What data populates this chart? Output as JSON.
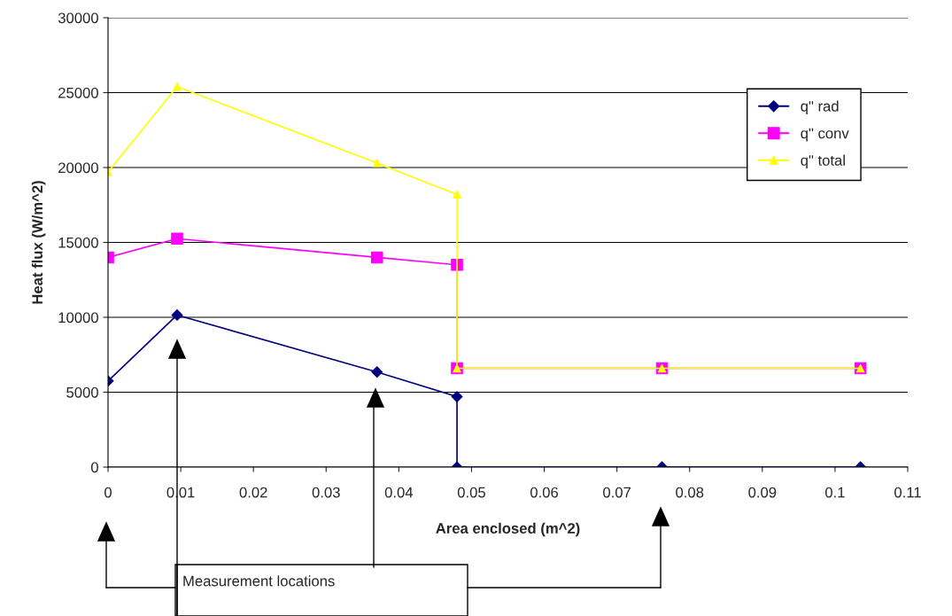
{
  "chart_data": {
    "type": "line",
    "xlabel": "Area enclosed (m^2)",
    "ylabel": "Heat flux (W/m^2)",
    "xlim": [
      0,
      0.11
    ],
    "xticks": [
      0,
      0.01,
      0.02,
      0.03,
      0.04,
      0.05,
      0.06,
      0.07,
      0.08,
      0.09,
      0.1,
      0.11
    ],
    "ylim": [
      0,
      30000
    ],
    "yticks": [
      0,
      5000,
      10000,
      15000,
      20000,
      25000,
      30000
    ],
    "grid": "y",
    "legend": "right",
    "line_style": "solid",
    "series": [
      {
        "name": "q\" rad",
        "color": "#000080",
        "marker": "diamond",
        "x": [
          0,
          0.0095,
          0.037,
          0.048,
          0.048,
          0.0762,
          0.1035
        ],
        "values": [
          5750,
          10150,
          6350,
          4700,
          0,
          0,
          0
        ]
      },
      {
        "name": "q\" conv",
        "color": "#ff00ff",
        "marker": "square",
        "x": [
          0,
          0.0095,
          0.037,
          0.048,
          0.048,
          0.0762,
          0.1035
        ],
        "values": [
          14000,
          15250,
          14000,
          13500,
          6600,
          6600,
          6600
        ]
      },
      {
        "name": "q\" total",
        "color": "#ffff00",
        "marker": "triangle",
        "x": [
          0,
          0.0095,
          0.037,
          0.048,
          0.048,
          0.0762,
          0.1035
        ],
        "values": [
          19700,
          25400,
          20300,
          18200,
          6600,
          6600,
          6600
        ]
      }
    ],
    "annotations": [
      "Measurement locations"
    ]
  }
}
